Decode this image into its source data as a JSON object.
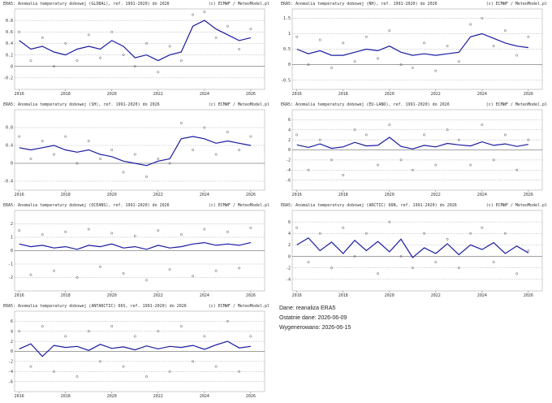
{
  "chart_data": [
    {
      "type": "line",
      "title": "ERA5: Anomalia temperatury dobowej (GLOBAL), ref. 1991-2020) do 2026",
      "credit": "(c) ECMWF / MeteoModel.pl",
      "x": [
        2016,
        2016.5,
        2017,
        2017.5,
        2018,
        2018.5,
        2019,
        2019.5,
        2020,
        2020.5,
        2021,
        2021.5,
        2022,
        2022.5,
        2023,
        2023.5,
        2024,
        2024.5,
        2025,
        2025.5,
        2026
      ],
      "xlim": [
        2015.8,
        2026.6
      ],
      "xticks": [
        2016,
        2018,
        2020,
        2022,
        2024,
        2026
      ],
      "ylim": [
        -0.4,
        1.0
      ],
      "yticks": [
        -0.2,
        0,
        0.2,
        0.4,
        0.6,
        0.8
      ],
      "grid": true,
      "series": [
        {
          "color": "#555555",
          "values": [
            0.6,
            0.1,
            0.5,
            0.0,
            0.4,
            0.1,
            0.55,
            0.15,
            0.6,
            0.2,
            0.0,
            0.4,
            -0.1,
            0.35,
            0.1,
            0.9,
            0.95,
            0.5,
            0.7,
            0.3,
            0.65
          ]
        },
        {
          "color": "#1a1aa0",
          "values": [
            0.45,
            0.3,
            0.35,
            0.25,
            0.2,
            0.3,
            0.35,
            0.3,
            0.45,
            0.35,
            0.15,
            0.2,
            0.1,
            0.2,
            0.25,
            0.7,
            0.8,
            0.65,
            0.55,
            0.45,
            0.5
          ]
        }
      ]
    },
    {
      "type": "line",
      "title": "ERA5: Anomalia temperatury dobowej (NH), ref. 1991-2020) do 2026",
      "credit": "(c) ECMWF / MeteoModel.pl",
      "x": [
        2016,
        2016.5,
        2017,
        2017.5,
        2018,
        2018.5,
        2019,
        2019.5,
        2020,
        2020.5,
        2021,
        2021.5,
        2022,
        2022.5,
        2023,
        2023.5,
        2024,
        2024.5,
        2025,
        2025.5,
        2026
      ],
      "xlim": [
        2015.8,
        2026.6
      ],
      "xticks": [
        2016,
        2018,
        2020,
        2022,
        2024,
        2026
      ],
      "ylim": [
        -0.8,
        1.8
      ],
      "yticks": [
        -0.5,
        0,
        0.5,
        1,
        1.5
      ],
      "grid": true,
      "series": [
        {
          "color": "#555555",
          "values": [
            0.9,
            0.0,
            0.8,
            -0.1,
            0.7,
            0.1,
            0.9,
            0.2,
            1.1,
            0.0,
            -0.1,
            0.7,
            -0.2,
            0.6,
            0.1,
            1.3,
            1.5,
            0.6,
            1.1,
            0.3,
            0.9
          ]
        },
        {
          "color": "#1a1aa0",
          "values": [
            0.5,
            0.35,
            0.45,
            0.3,
            0.3,
            0.4,
            0.5,
            0.45,
            0.6,
            0.4,
            0.3,
            0.35,
            0.3,
            0.35,
            0.4,
            0.9,
            1.0,
            0.85,
            0.7,
            0.6,
            0.55
          ]
        }
      ]
    },
    {
      "type": "line",
      "title": "ERA5: Anomalia temperatury dobowej (SH), ref. 1991-2020) do 2026",
      "credit": "(c) ECMWF / MeteoModel.pl",
      "x": [
        2016,
        2016.5,
        2017,
        2017.5,
        2018,
        2018.5,
        2019,
        2019.5,
        2020,
        2020.5,
        2021,
        2021.5,
        2022,
        2022.5,
        2023,
        2023.5,
        2024,
        2024.5,
        2025,
        2025.5,
        2026
      ],
      "xlim": [
        2015.8,
        2026.6
      ],
      "xticks": [
        2016,
        2018,
        2020,
        2022,
        2024,
        2026
      ],
      "ylim": [
        -0.6,
        1.2
      ],
      "yticks": [
        -0.4,
        0,
        0.4,
        0.8
      ],
      "grid": true,
      "series": [
        {
          "color": "#555555",
          "values": [
            0.6,
            0.1,
            0.5,
            0.2,
            0.6,
            0.0,
            0.5,
            0.1,
            0.3,
            -0.2,
            0.2,
            -0.3,
            0.1,
            0.0,
            0.9,
            0.3,
            0.8,
            0.2,
            0.7,
            0.3,
            0.6
          ]
        },
        {
          "color": "#1a1aa0",
          "values": [
            0.35,
            0.3,
            0.35,
            0.4,
            0.3,
            0.25,
            0.3,
            0.2,
            0.15,
            0.05,
            0.0,
            -0.05,
            0.05,
            0.1,
            0.55,
            0.6,
            0.55,
            0.45,
            0.5,
            0.45,
            0.4
          ]
        }
      ]
    },
    {
      "type": "line",
      "title": "ERA5: Anomalia temperatury dobowej (EU-LAND), ref. 1991-2020) do 2026",
      "credit": "(c) ECMWF / MeteoModel.pl",
      "x": [
        2016,
        2016.5,
        2017,
        2017.5,
        2018,
        2018.5,
        2019,
        2019.5,
        2020,
        2020.5,
        2021,
        2021.5,
        2022,
        2022.5,
        2023,
        2023.5,
        2024,
        2024.5,
        2025,
        2025.5,
        2026
      ],
      "xlim": [
        2015.8,
        2026.6
      ],
      "xticks": [
        2016,
        2018,
        2020,
        2022,
        2024,
        2026
      ],
      "ylim": [
        -8,
        8
      ],
      "yticks": [
        -6,
        -4,
        -2,
        0,
        2,
        4,
        6
      ],
      "grid": true,
      "series": [
        {
          "color": "#555555",
          "values": [
            3,
            -4,
            2,
            -2,
            -5,
            4,
            3,
            -3,
            5,
            -2,
            -4,
            3,
            -3,
            4,
            2,
            -3,
            5,
            -2,
            3,
            -4,
            2
          ]
        },
        {
          "color": "#1a1aa0",
          "values": [
            1.0,
            0.5,
            1.2,
            0.3,
            0.6,
            1.5,
            0.8,
            0.9,
            2.5,
            0.7,
            0.2,
            0.9,
            0.6,
            1.3,
            1.0,
            0.8,
            1.6,
            0.9,
            1.2,
            0.7,
            1.1
          ]
        }
      ]
    },
    {
      "type": "line",
      "title": "ERA5: Anomalia temperatury dobowej (OCEANS), ref. 1991-2020) do 2026",
      "credit": "(c) ECMWF / MeteoModel.pl",
      "x": [
        2016,
        2016.5,
        2017,
        2017.5,
        2018,
        2018.5,
        2019,
        2019.5,
        2020,
        2020.5,
        2021,
        2021.5,
        2022,
        2022.5,
        2023,
        2023.5,
        2024,
        2024.5,
        2025,
        2025.5,
        2026
      ],
      "xlim": [
        2015.8,
        2026.6
      ],
      "xticks": [
        2016,
        2018,
        2020,
        2022,
        2024,
        2026
      ],
      "ylim": [
        -3,
        3
      ],
      "yticks": [
        -2,
        -1,
        0,
        1,
        2
      ],
      "grid": true,
      "series": [
        {
          "color": "#555555",
          "values": [
            1.5,
            -1.8,
            1.2,
            -1.5,
            1.4,
            -2.0,
            1.6,
            -1.2,
            1.3,
            -1.7,
            1.1,
            -2.2,
            1.5,
            -1.4,
            1.2,
            -1.9,
            1.6,
            -1.5,
            1.4,
            -1.3,
            1.7
          ]
        },
        {
          "color": "#1a1aa0",
          "values": [
            0.5,
            0.3,
            0.4,
            0.2,
            0.3,
            0.1,
            0.4,
            0.3,
            0.5,
            0.2,
            0.3,
            0.1,
            0.4,
            0.2,
            0.3,
            0.5,
            0.6,
            0.4,
            0.5,
            0.4,
            0.6
          ]
        }
      ]
    },
    {
      "type": "line",
      "title": "ERA5: Anomalia temperatury dobowej (ARCTIC) 66N, ref. 1991-2020) do 2026",
      "credit": "(c) ECMWF / MeteoModel.pl",
      "x": [
        2016,
        2016.5,
        2017,
        2017.5,
        2018,
        2018.5,
        2019,
        2019.5,
        2020,
        2020.5,
        2021,
        2021.5,
        2022,
        2022.5,
        2023,
        2023.5,
        2024,
        2024.5,
        2025,
        2025.5,
        2026
      ],
      "xlim": [
        2015.8,
        2026.6
      ],
      "xticks": [
        2016,
        2018,
        2020,
        2022,
        2024,
        2026
      ],
      "ylim": [
        -6,
        8
      ],
      "yticks": [
        -4,
        -2,
        0,
        2,
        4,
        6
      ],
      "grid": true,
      "series": [
        {
          "color": "#555555",
          "values": [
            5,
            -1,
            4,
            -2,
            5,
            0,
            4,
            -3,
            6,
            0,
            -2,
            4,
            -1,
            3,
            -2,
            4,
            5,
            -1,
            4,
            -3,
            1
          ]
        },
        {
          "color": "#1a1aa0",
          "values": [
            2.0,
            3.2,
            1.0,
            2.5,
            0.5,
            2.8,
            1.0,
            2.6,
            0.8,
            3.0,
            -0.2,
            1.5,
            0.5,
            2.2,
            0.3,
            2.0,
            1.2,
            2.4,
            0.5,
            1.8,
            0.6
          ]
        }
      ]
    },
    {
      "type": "line",
      "title": "ERA5: Anomalia temperatury dobowej (ANTARCTIC) 66S, ref. 1991-2020) do 2026",
      "credit": "(c) ECMWF / MeteoModel.pl",
      "x": [
        2016,
        2016.5,
        2017,
        2017.5,
        2018,
        2018.5,
        2019,
        2019.5,
        2020,
        2020.5,
        2021,
        2021.5,
        2022,
        2022.5,
        2023,
        2023.5,
        2024,
        2024.5,
        2025,
        2025.5,
        2026
      ],
      "xlim": [
        2015.8,
        2026.6
      ],
      "xticks": [
        2016,
        2018,
        2020,
        2022,
        2024,
        2026
      ],
      "ylim": [
        -8,
        8
      ],
      "yticks": [
        -6,
        -4,
        -2,
        0,
        2,
        4,
        6
      ],
      "grid": true,
      "series": [
        {
          "color": "#555555",
          "values": [
            4,
            -3,
            5,
            -4,
            3,
            -5,
            4,
            -2,
            5,
            -3,
            3,
            -5,
            4,
            -4,
            5,
            -2,
            3,
            -3,
            6,
            -4,
            3
          ]
        },
        {
          "color": "#1a1aa0",
          "values": [
            0.5,
            1.5,
            -1.0,
            1.2,
            0.8,
            1.0,
            0.2,
            1.4,
            0.6,
            0.9,
            0.3,
            1.1,
            0.5,
            1.0,
            0.8,
            1.2,
            0.4,
            1.3,
            2.0,
            0.7,
            1.0
          ]
        }
      ]
    }
  ],
  "info": [
    "Dane: reanaliza ERA5",
    "Ostatnie dane: 2026-06-09",
    "Wygenerowano: 2026-06-15"
  ]
}
